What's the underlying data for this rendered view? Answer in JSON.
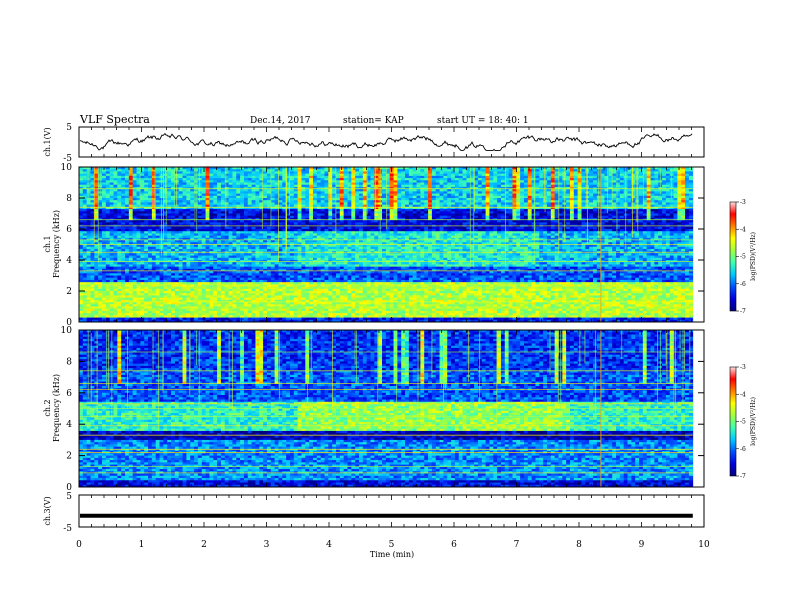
{
  "header": {
    "title": "VLF Spectra",
    "date": "Dec.14, 2017",
    "station": "station= KAP",
    "start": "start  UT =   18: 40: 1"
  },
  "chart_data": [
    {
      "type": "line",
      "panel": "ch1-waveform",
      "ylabel": "ch.1(V)",
      "ylim": [
        -5,
        5
      ],
      "yticks": [
        "5",
        "-5"
      ],
      "xlim": [
        0,
        10
      ],
      "note": "noisy waveform oscillating roughly between -2 and +2 V over 0-9.8 min"
    },
    {
      "type": "heatmap",
      "panel": "ch1-spectrogram",
      "ylabel": "ch.1\nFrequency (kHz)",
      "ylim": [
        0,
        10
      ],
      "yticks": [
        "0",
        "2",
        "4",
        "6",
        "8",
        "10"
      ],
      "xlim": [
        0,
        10
      ],
      "colorbar": {
        "label": "log(PSD)(V²/Hz)",
        "range": [
          -7,
          -3
        ],
        "ticks": [
          "-3",
          "-4",
          "-5",
          "-6",
          "-7"
        ]
      }
    },
    {
      "type": "heatmap",
      "panel": "ch2-spectrogram",
      "ylabel": "ch.2\nFrequency (kHz)",
      "ylim": [
        0,
        10
      ],
      "yticks": [
        "0",
        "2",
        "4",
        "6",
        "8",
        "10"
      ],
      "xlim": [
        0,
        10
      ],
      "colorbar": {
        "label": "log(PSD)(V²/Hz)",
        "range": [
          -7,
          -3
        ],
        "ticks": [
          "-3",
          "-4",
          "-5",
          "-6",
          "-7"
        ]
      }
    },
    {
      "type": "line",
      "panel": "ch3-waveform",
      "ylabel": "ch.3(V)",
      "ylim": [
        -5,
        5
      ],
      "yticks": [
        "5",
        "-5"
      ],
      "xlim": [
        0,
        10
      ],
      "constant_value": -1.5
    }
  ],
  "xaxis": {
    "label": "Time (min)",
    "ticks": [
      "0",
      "1",
      "2",
      "3",
      "4",
      "5",
      "6",
      "7",
      "8",
      "9",
      "10"
    ]
  },
  "colors": {
    "colormap": [
      "#00007f",
      "#0000e0",
      "#0050ff",
      "#00c8ff",
      "#40ffb0",
      "#a0ff40",
      "#ffff00",
      "#ff8000",
      "#ff0000",
      "#ffe0e0"
    ]
  }
}
